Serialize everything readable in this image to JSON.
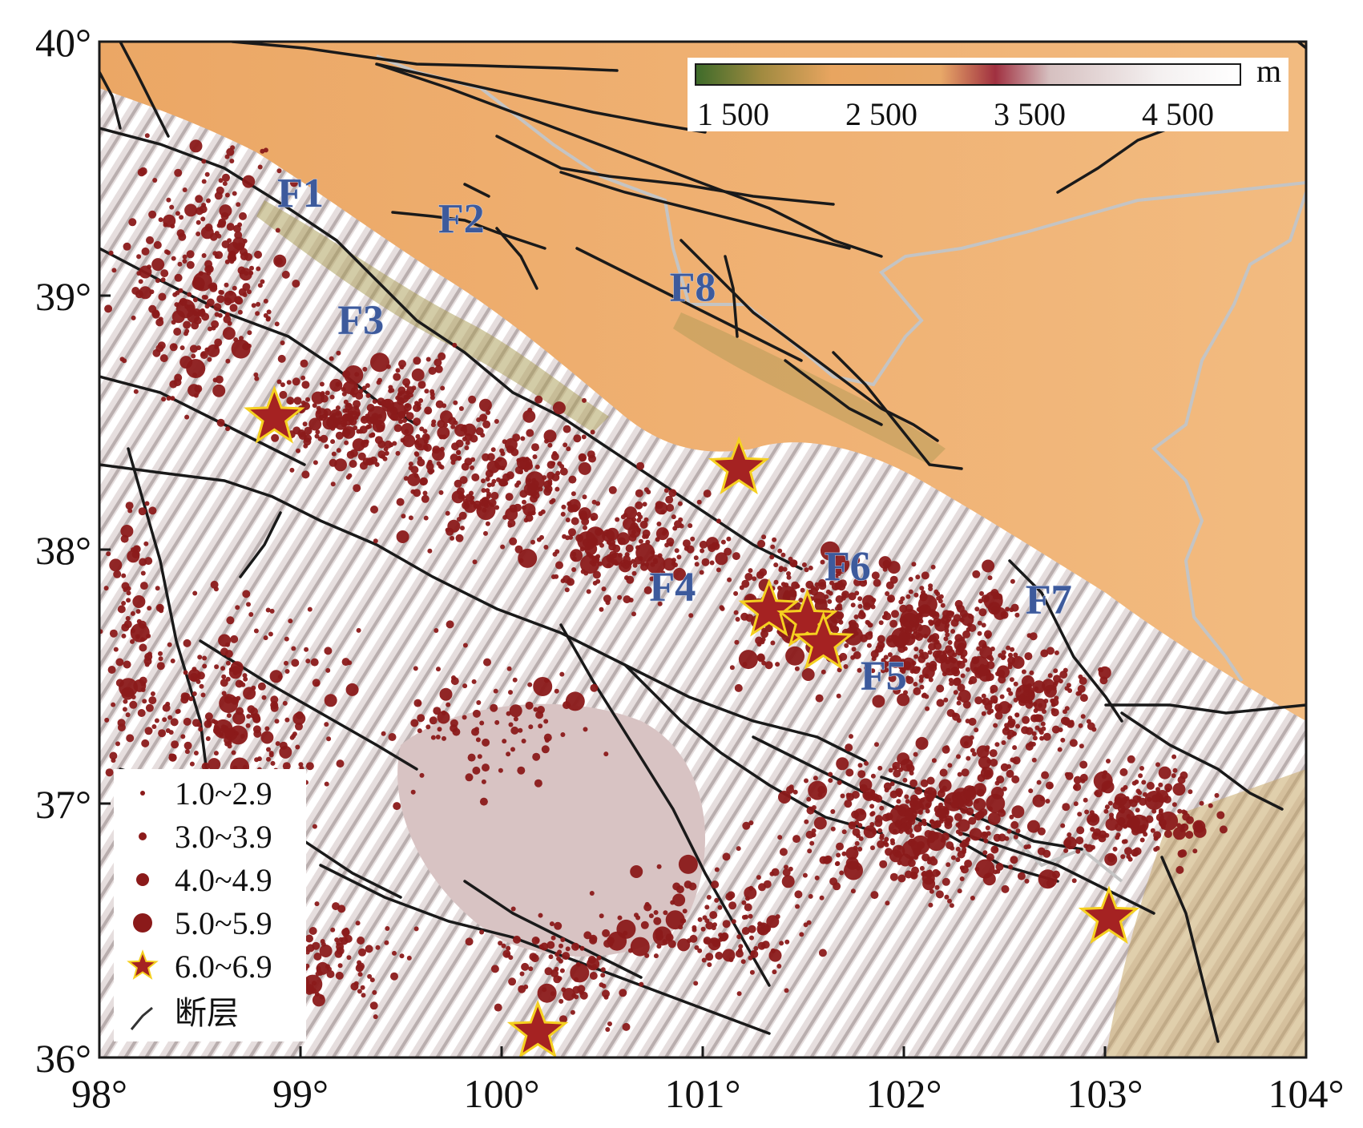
{
  "map": {
    "lon_range": [
      98,
      104
    ],
    "lat_range": [
      36,
      40
    ],
    "x_tick_labels": [
      "98°",
      "99°",
      "100°",
      "101°",
      "102°",
      "103°",
      "104°"
    ],
    "y_tick_labels": [
      "36°",
      "37°",
      "38°",
      "39°",
      "40°"
    ],
    "fault_labels": [
      {
        "text": "F1",
        "lon": 99.0,
        "lat": 39.35
      },
      {
        "text": "F2",
        "lon": 99.8,
        "lat": 39.25
      },
      {
        "text": "F3",
        "lon": 99.3,
        "lat": 38.85
      },
      {
        "text": "F4",
        "lon": 100.85,
        "lat": 37.8
      },
      {
        "text": "F5",
        "lon": 101.9,
        "lat": 37.45
      },
      {
        "text": "F6",
        "lon": 101.72,
        "lat": 37.88
      },
      {
        "text": "F7",
        "lon": 102.72,
        "lat": 37.75
      },
      {
        "text": "F8",
        "lon": 100.95,
        "lat": 38.98
      }
    ],
    "major_quakes_6_0_to_6_9": [
      {
        "lon": 98.87,
        "lat": 38.52
      },
      {
        "lon": 101.18,
        "lat": 38.32
      },
      {
        "lon": 101.33,
        "lat": 37.76
      },
      {
        "lon": 101.52,
        "lat": 37.72
      },
      {
        "lon": 101.6,
        "lat": 37.63
      },
      {
        "lon": 103.02,
        "lat": 36.55
      },
      {
        "lon": 100.18,
        "lat": 36.1
      }
    ],
    "elevation_colorbar": {
      "unit": "m",
      "tick_labels": [
        "1 500",
        "2 500",
        "3 500",
        "4 500"
      ],
      "colors": [
        "#3d6b2a",
        "#8a8a3a",
        "#e0a060",
        "#f0b070",
        "#a03040",
        "#d8c8c8",
        "#ffffff"
      ]
    },
    "legend": [
      {
        "label": "1.0~2.9",
        "symbol": "circle",
        "size": "tiny"
      },
      {
        "label": "3.0~3.9",
        "symbol": "circle",
        "size": "small"
      },
      {
        "label": "4.0~4.9",
        "symbol": "circle",
        "size": "medium"
      },
      {
        "label": "5.0~5.9",
        "symbol": "circle",
        "size": "large"
      },
      {
        "label": "6.0~6.9",
        "symbol": "star",
        "size": "star"
      },
      {
        "label": "断层",
        "symbol": "line",
        "size": "line"
      }
    ],
    "colors": {
      "quake_fill": "#8b1a1a",
      "star_fill": "#a52222",
      "star_stroke": "#f5d020",
      "fault": "#1a1a1a",
      "boundary": "#bdbdbd",
      "plain": "#f0b070"
    }
  }
}
